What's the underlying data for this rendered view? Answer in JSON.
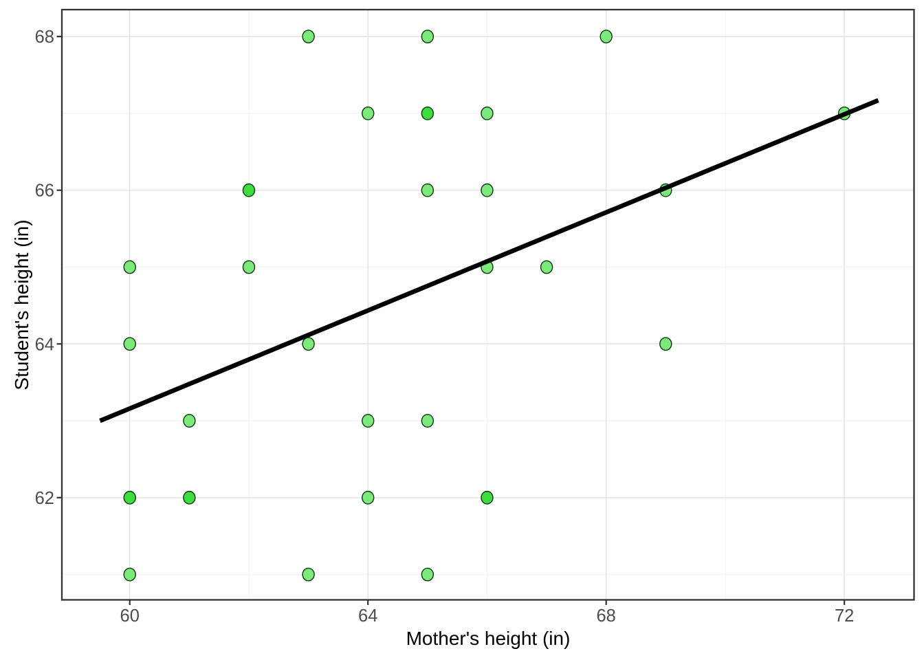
{
  "chart_data": {
    "type": "scatter",
    "title": "",
    "xlabel": "Mother's height (in)",
    "ylabel": "Student's height (in)",
    "xlim": [
      58.86,
      73.17
    ],
    "ylim": [
      60.67,
      68.35
    ],
    "x_ticks": [
      60,
      64,
      68,
      72
    ],
    "y_ticks": [
      62,
      64,
      66,
      68
    ],
    "x_minor_gridlines": [
      62,
      66,
      70
    ],
    "y_minor_gridlines": [
      61,
      63,
      65,
      67
    ],
    "grid": true,
    "legend": "none",
    "points": [
      {
        "x": 63,
        "y": 68,
        "n": 1
      },
      {
        "x": 65,
        "y": 68,
        "n": 1
      },
      {
        "x": 68,
        "y": 68,
        "n": 1
      },
      {
        "x": 64,
        "y": 67,
        "n": 1
      },
      {
        "x": 65,
        "y": 67,
        "n": 2
      },
      {
        "x": 66,
        "y": 67,
        "n": 1
      },
      {
        "x": 72,
        "y": 67,
        "n": 1
      },
      {
        "x": 62,
        "y": 66,
        "n": 2
      },
      {
        "x": 65,
        "y": 66,
        "n": 1
      },
      {
        "x": 66,
        "y": 66,
        "n": 1
      },
      {
        "x": 69,
        "y": 66,
        "n": 1
      },
      {
        "x": 60,
        "y": 65,
        "n": 1
      },
      {
        "x": 62,
        "y": 65,
        "n": 1
      },
      {
        "x": 66,
        "y": 65,
        "n": 1
      },
      {
        "x": 67,
        "y": 65,
        "n": 1
      },
      {
        "x": 60,
        "y": 64,
        "n": 1
      },
      {
        "x": 63,
        "y": 64,
        "n": 1
      },
      {
        "x": 69,
        "y": 64,
        "n": 1
      },
      {
        "x": 61,
        "y": 63,
        "n": 1
      },
      {
        "x": 64,
        "y": 63,
        "n": 1
      },
      {
        "x": 65,
        "y": 63,
        "n": 1
      },
      {
        "x": 60,
        "y": 62,
        "n": 2
      },
      {
        "x": 61,
        "y": 62,
        "n": 2
      },
      {
        "x": 64,
        "y": 62,
        "n": 1
      },
      {
        "x": 66,
        "y": 62,
        "n": 2
      },
      {
        "x": 60,
        "y": 61,
        "n": 1
      },
      {
        "x": 63,
        "y": 61,
        "n": 1
      },
      {
        "x": 65,
        "y": 61,
        "n": 1
      }
    ],
    "trend_line": {
      "x1": 59.5,
      "y1": 63.0,
      "x2": 72.57,
      "y2": 67.17
    },
    "colors": {
      "background": "#ffffff",
      "panel_background": "#ffffff",
      "grid_major": "#e4e4e4",
      "grid_minor": "#f1f1f1",
      "panel_border": "#333333",
      "tick_mark": "#333333",
      "tick_label": "#4d4d4d",
      "axis_title": "#000000",
      "point_fill": "#7de97d",
      "point_fill_overlap": "#3edc3e",
      "point_stroke": "#0a380a",
      "trend_line": "#000000"
    }
  }
}
